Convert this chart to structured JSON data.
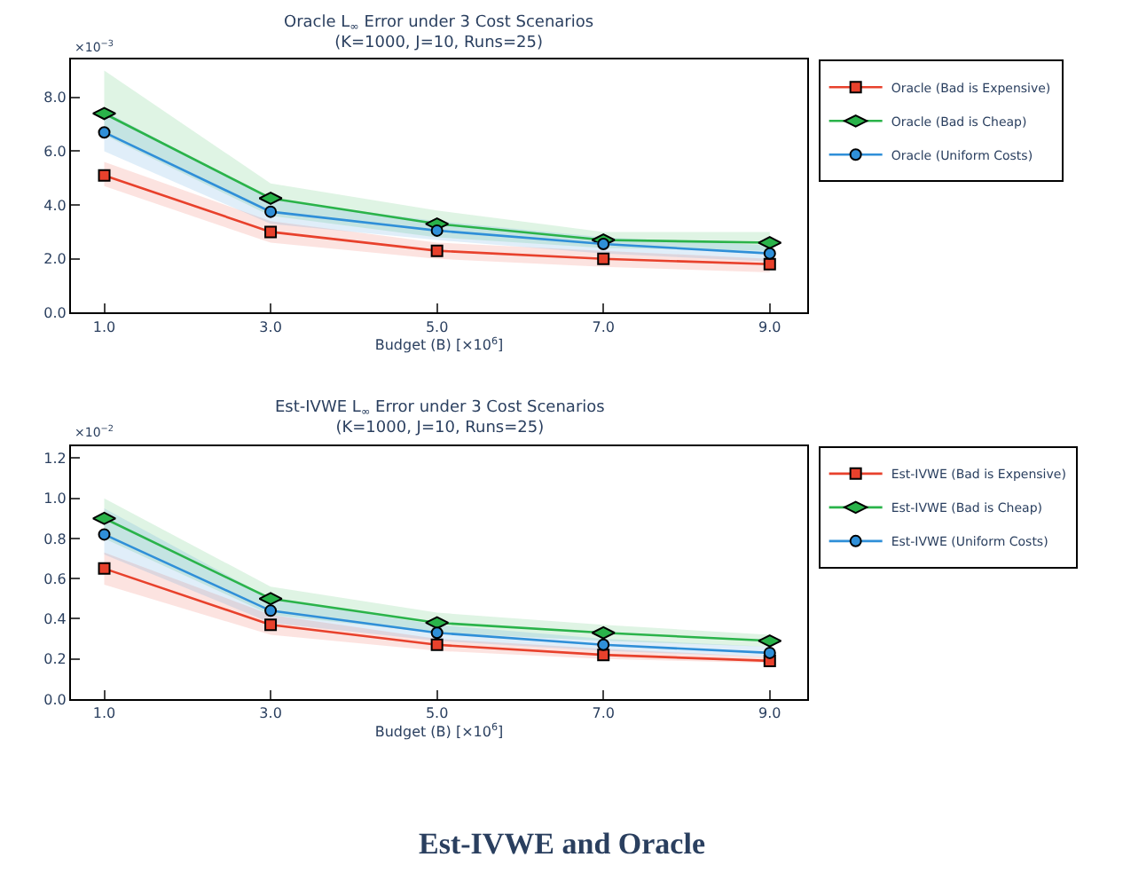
{
  "chart_data": [
    {
      "type": "line",
      "title": "Oracle L$_{∞}$ Error under 3 Cost Scenarios\n(K=1000, J=10, Runs=25)",
      "xlabel": "Budget (B) [×10$^{6}$]",
      "annotations": [
        "×10$^{−3}$"
      ],
      "x": [
        1,
        3,
        5,
        7,
        9
      ],
      "xlim": [
        0.6,
        9.45
      ],
      "xticks": [
        {
          "value": 1,
          "label": "1.0"
        },
        {
          "value": 3,
          "label": "3.0"
        },
        {
          "value": 5,
          "label": "5.0"
        },
        {
          "value": 7,
          "label": "7.0"
        },
        {
          "value": 9,
          "label": "9.0"
        }
      ],
      "ylim": [
        0,
        9.4
      ],
      "yticks": [
        {
          "value": 0,
          "label": "0.0"
        },
        {
          "value": 2,
          "label": "2.0"
        },
        {
          "value": 4,
          "label": "4.0"
        },
        {
          "value": 6,
          "label": "6.0"
        },
        {
          "value": 8,
          "label": "8.0"
        }
      ],
      "legend": "top right",
      "series": [
        {
          "name": "Oracle (Bad is Expensive)",
          "color": "#e8412c",
          "marker": "square",
          "values": [
            5.1,
            3.0,
            2.3,
            2.0,
            1.8
          ],
          "lower": [
            4.7,
            2.6,
            2.0,
            1.7,
            1.5
          ],
          "upper": [
            5.6,
            3.4,
            2.6,
            2.3,
            2.0
          ]
        },
        {
          "name": "Oracle (Bad is Cheap)",
          "color": "#2ab34a",
          "marker": "diamond",
          "values": [
            7.4,
            4.25,
            3.3,
            2.7,
            2.6
          ],
          "lower": [
            6.6,
            3.6,
            2.8,
            2.4,
            2.3
          ],
          "upper": [
            9.0,
            4.8,
            3.8,
            3.0,
            3.0
          ]
        },
        {
          "name": "Oracle (Uniform Costs)",
          "color": "#2f8fd8",
          "marker": "circle",
          "values": [
            6.7,
            3.75,
            3.05,
            2.55,
            2.2
          ],
          "lower": [
            6.0,
            3.3,
            2.7,
            2.2,
            1.9
          ],
          "upper": [
            7.5,
            4.2,
            3.4,
            2.8,
            2.5
          ]
        }
      ]
    },
    {
      "type": "line",
      "title": "Est-IVWE L$_{∞}$ Error under 3 Cost Scenarios\n(K=1000, J=10, Runs=25)",
      "xlabel": "Budget (B) [×10$^{6}$]",
      "annotations": [
        "×10$^{−2}$",
        "Est-IVWE and Oracle"
      ],
      "x": [
        1,
        3,
        5,
        7,
        9
      ],
      "xlim": [
        0.6,
        9.45
      ],
      "xticks": [
        {
          "value": 1,
          "label": "1.0"
        },
        {
          "value": 3,
          "label": "3.0"
        },
        {
          "value": 5,
          "label": "5.0"
        },
        {
          "value": 7,
          "label": "7.0"
        },
        {
          "value": 9,
          "label": "9.0"
        }
      ],
      "ylim": [
        0,
        1.26
      ],
      "yticks": [
        {
          "value": 0,
          "label": "0.0"
        },
        {
          "value": 0.2,
          "label": "0.2"
        },
        {
          "value": 0.4,
          "label": "0.4"
        },
        {
          "value": 0.6,
          "label": "0.6"
        },
        {
          "value": 0.8,
          "label": "0.8"
        },
        {
          "value": 1.0,
          "label": "1.0"
        },
        {
          "value": 1.2,
          "label": "1.2"
        }
      ],
      "legend": "top right",
      "series": [
        {
          "name": "Est-IVWE (Bad is Expensive)",
          "color": "#e8412c",
          "marker": "square",
          "values": [
            0.65,
            0.37,
            0.27,
            0.22,
            0.19
          ],
          "lower": [
            0.57,
            0.32,
            0.24,
            0.2,
            0.18
          ],
          "upper": [
            0.73,
            0.42,
            0.3,
            0.25,
            0.21
          ]
        },
        {
          "name": "Est-IVWE (Bad is Cheap)",
          "color": "#2ab34a",
          "marker": "diamond",
          "values": [
            0.9,
            0.5,
            0.38,
            0.33,
            0.29
          ],
          "lower": [
            0.8,
            0.42,
            0.33,
            0.29,
            0.26
          ],
          "upper": [
            1.0,
            0.56,
            0.43,
            0.37,
            0.32
          ]
        },
        {
          "name": "Est-IVWE (Uniform Costs)",
          "color": "#2f8fd8",
          "marker": "circle",
          "values": [
            0.82,
            0.44,
            0.33,
            0.27,
            0.23
          ],
          "lower": [
            0.72,
            0.38,
            0.29,
            0.24,
            0.21
          ],
          "upper": [
            0.95,
            0.5,
            0.37,
            0.3,
            0.26
          ]
        }
      ]
    }
  ]
}
